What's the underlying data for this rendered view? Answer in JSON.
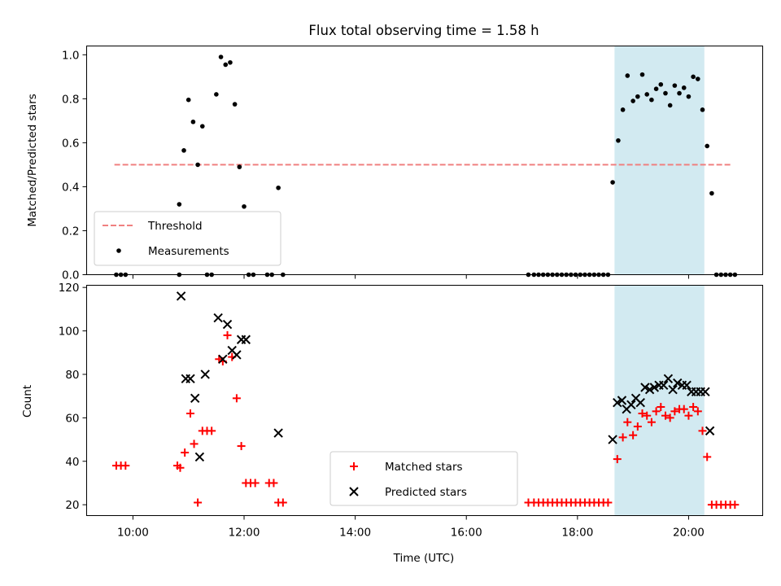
{
  "chart_data": {
    "type": "scatter",
    "title": "Flux total observing time = 1.58 h",
    "xlabel": "Time (UTC)",
    "x_unit": "hours UTC",
    "xlim": [
      "09:10",
      "21:20"
    ],
    "x_ticks": [
      "10:00",
      "12:00",
      "14:00",
      "16:00",
      "18:00",
      "20:00"
    ],
    "shaded_interval": {
      "x": [
        "18:40",
        "20:17"
      ],
      "color": "#add8e6"
    },
    "panels": [
      {
        "name": "ratio",
        "ylabel": "Matched/Predicted stars",
        "ylim": [
          0,
          1.04
        ],
        "y_ticks": [
          "0.0",
          "0.2",
          "0.4",
          "0.6",
          "0.8",
          "1.0"
        ],
        "legend": {
          "position": "lower left",
          "entries": [
            "Threshold",
            "Measurements"
          ]
        },
        "threshold": {
          "label": "Threshold",
          "value": 0.5,
          "x": [
            "09:40",
            "20:45"
          ],
          "color": "#f08080",
          "style": "dashed"
        },
        "series": [
          {
            "name": "Measurements",
            "color": "#000000",
            "marker": "dot",
            "points": [
              [
                "09:42",
                0
              ],
              [
                "09:47",
                0
              ],
              [
                "09:52",
                0
              ],
              [
                "10:50",
                0.32
              ],
              [
                "10:50",
                0
              ],
              [
                "10:55",
                0.565
              ],
              [
                "11:00",
                0.795
              ],
              [
                "11:05",
                0.695
              ],
              [
                "11:10",
                0.5
              ],
              [
                "11:15",
                0.675
              ],
              [
                "11:20",
                0
              ],
              [
                "11:25",
                0
              ],
              [
                "11:30",
                0.82
              ],
              [
                "11:35",
                0.99
              ],
              [
                "11:40",
                0.955
              ],
              [
                "11:45",
                0.965
              ],
              [
                "11:50",
                0.775
              ],
              [
                "11:55",
                0.49
              ],
              [
                "12:00",
                0.31
              ],
              [
                "12:05",
                0
              ],
              [
                "12:10",
                0
              ],
              [
                "12:25",
                0
              ],
              [
                "12:30",
                0
              ],
              [
                "12:37",
                0.395
              ],
              [
                "12:42",
                0
              ],
              [
                "17:07",
                0
              ],
              [
                "17:13",
                0
              ],
              [
                "17:18",
                0
              ],
              [
                "17:23",
                0
              ],
              [
                "17:28",
                0
              ],
              [
                "17:33",
                0
              ],
              [
                "17:38",
                0
              ],
              [
                "17:43",
                0
              ],
              [
                "17:48",
                0
              ],
              [
                "17:53",
                0
              ],
              [
                "17:58",
                0
              ],
              [
                "18:03",
                0
              ],
              [
                "18:08",
                0
              ],
              [
                "18:13",
                0
              ],
              [
                "18:18",
                0
              ],
              [
                "18:23",
                0
              ],
              [
                "18:28",
                0
              ],
              [
                "18:33",
                0
              ],
              [
                "18:38",
                0.42
              ],
              [
                "18:44",
                0.61
              ],
              [
                "18:49",
                0.75
              ],
              [
                "18:54",
                0.905
              ],
              [
                "19:00",
                0.79
              ],
              [
                "19:05",
                0.81
              ],
              [
                "19:10",
                0.91
              ],
              [
                "19:15",
                0.82
              ],
              [
                "19:20",
                0.795
              ],
              [
                "19:25",
                0.845
              ],
              [
                "19:30",
                0.865
              ],
              [
                "19:35",
                0.825
              ],
              [
                "19:40",
                0.77
              ],
              [
                "19:45",
                0.86
              ],
              [
                "19:50",
                0.825
              ],
              [
                "19:55",
                0.85
              ],
              [
                "20:00",
                0.81
              ],
              [
                "20:05",
                0.9
              ],
              [
                "20:10",
                0.89
              ],
              [
                "20:15",
                0.75
              ],
              [
                "20:20",
                0.585
              ],
              [
                "20:25",
                0.37
              ],
              [
                "20:30",
                0
              ],
              [
                "20:35",
                0
              ],
              [
                "20:40",
                0
              ],
              [
                "20:45",
                0
              ],
              [
                "20:50",
                0
              ]
            ]
          }
        ]
      },
      {
        "name": "counts",
        "ylabel": "Count",
        "ylim": [
          15,
          121
        ],
        "y_ticks": [
          "20",
          "40",
          "60",
          "80",
          "100",
          "120"
        ],
        "legend": {
          "position": "lower center",
          "entries": [
            "Matched stars",
            "Predicted stars"
          ]
        },
        "series": [
          {
            "name": "Matched stars",
            "color": "#ff0000",
            "marker": "plus",
            "points": [
              [
                "09:42",
                38
              ],
              [
                "09:47",
                38
              ],
              [
                "09:52",
                38
              ],
              [
                "10:48",
                38
              ],
              [
                "10:51",
                37
              ],
              [
                "10:56",
                44
              ],
              [
                "11:02",
                62
              ],
              [
                "11:06",
                48
              ],
              [
                "11:10",
                21
              ],
              [
                "11:15",
                54
              ],
              [
                "11:20",
                54
              ],
              [
                "11:25",
                54
              ],
              [
                "11:33",
                87
              ],
              [
                "11:37",
                86
              ],
              [
                "11:42",
                98
              ],
              [
                "11:47",
                88
              ],
              [
                "11:52",
                69
              ],
              [
                "11:57",
                47
              ],
              [
                "12:02",
                30
              ],
              [
                "12:07",
                30
              ],
              [
                "12:12",
                30
              ],
              [
                "12:27",
                30
              ],
              [
                "12:32",
                30
              ],
              [
                "12:37",
                21
              ],
              [
                "12:42",
                21
              ],
              [
                "17:07",
                21
              ],
              [
                "17:13",
                21
              ],
              [
                "17:18",
                21
              ],
              [
                "17:23",
                21
              ],
              [
                "17:28",
                21
              ],
              [
                "17:33",
                21
              ],
              [
                "17:38",
                21
              ],
              [
                "17:43",
                21
              ],
              [
                "17:48",
                21
              ],
              [
                "17:53",
                21
              ],
              [
                "17:58",
                21
              ],
              [
                "18:03",
                21
              ],
              [
                "18:08",
                21
              ],
              [
                "18:13",
                21
              ],
              [
                "18:18",
                21
              ],
              [
                "18:23",
                21
              ],
              [
                "18:28",
                21
              ],
              [
                "18:33",
                21
              ],
              [
                "18:43",
                41
              ],
              [
                "18:49",
                51
              ],
              [
                "18:54",
                58
              ],
              [
                "19:00",
                52
              ],
              [
                "19:05",
                56
              ],
              [
                "19:10",
                62
              ],
              [
                "19:15",
                61
              ],
              [
                "19:20",
                58
              ],
              [
                "19:25",
                63
              ],
              [
                "19:30",
                65
              ],
              [
                "19:35",
                61
              ],
              [
                "19:40",
                60
              ],
              [
                "19:45",
                63
              ],
              [
                "19:50",
                64
              ],
              [
                "19:55",
                64
              ],
              [
                "20:00",
                61
              ],
              [
                "20:05",
                65
              ],
              [
                "20:10",
                63
              ],
              [
                "20:15",
                54
              ],
              [
                "20:20",
                42
              ],
              [
                "20:25",
                20
              ],
              [
                "20:30",
                20
              ],
              [
                "20:35",
                20
              ],
              [
                "20:40",
                20
              ],
              [
                "20:45",
                20
              ],
              [
                "20:50",
                20
              ]
            ]
          },
          {
            "name": "Predicted stars",
            "color": "#000000",
            "marker": "x",
            "points": [
              [
                "10:52",
                116
              ],
              [
                "10:57",
                78
              ],
              [
                "11:02",
                78
              ],
              [
                "11:07",
                69
              ],
              [
                "11:12",
                42
              ],
              [
                "11:18",
                80
              ],
              [
                "11:32",
                106
              ],
              [
                "11:37",
                87
              ],
              [
                "11:42",
                103
              ],
              [
                "11:47",
                91
              ],
              [
                "11:52",
                89
              ],
              [
                "11:57",
                96
              ],
              [
                "12:02",
                96
              ],
              [
                "12:37",
                53
              ],
              [
                "18:38",
                50
              ],
              [
                "18:43",
                67
              ],
              [
                "18:48",
                68
              ],
              [
                "18:53",
                64
              ],
              [
                "18:58",
                66
              ],
              [
                "19:03",
                69
              ],
              [
                "19:08",
                67
              ],
              [
                "19:13",
                74
              ],
              [
                "19:18",
                73
              ],
              [
                "19:23",
                74
              ],
              [
                "19:28",
                75
              ],
              [
                "19:33",
                75
              ],
              [
                "19:38",
                78
              ],
              [
                "19:43",
                73
              ],
              [
                "19:48",
                76
              ],
              [
                "19:53",
                75
              ],
              [
                "19:58",
                75
              ],
              [
                "20:03",
                72
              ],
              [
                "20:08",
                72
              ],
              [
                "20:13",
                72
              ],
              [
                "20:18",
                72
              ],
              [
                "20:23",
                54
              ]
            ]
          }
        ]
      }
    ]
  }
}
